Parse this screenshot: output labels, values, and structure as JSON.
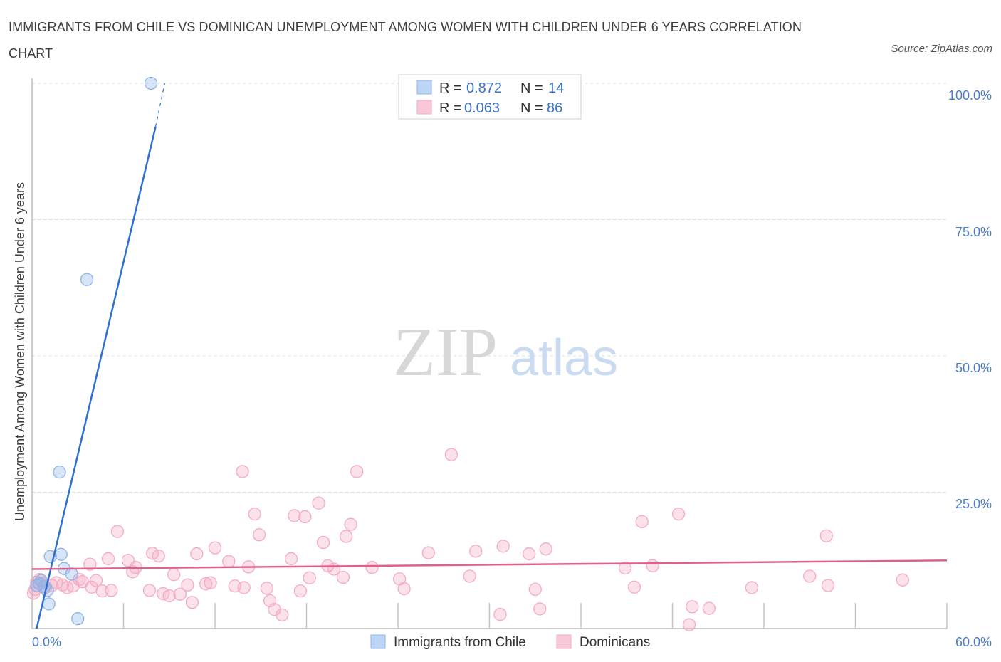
{
  "title": "IMMIGRANTS FROM CHILE VS DOMINICAN UNEMPLOYMENT AMONG WOMEN WITH CHILDREN UNDER 6 YEARS CORRELATION CHART",
  "source": "Source: ZipAtlas.com",
  "watermark": {
    "zip": "ZIP",
    "atlas": "atlas"
  },
  "legend": {
    "r_label": "R =",
    "n_label": "N =",
    "rows": [
      {
        "r": "0.872",
        "n": "14"
      },
      {
        "r": "0.063",
        "n": "86"
      }
    ]
  },
  "chart_data": {
    "type": "scatter",
    "title": "IMMIGRANTS FROM CHILE VS DOMINICAN UNEMPLOYMENT AMONG WOMEN WITH CHILDREN UNDER 6 YEARS CORRELATION CHART",
    "xlabel": "",
    "ylabel": "Unemployment Among Women with Children Under 6 years",
    "xlim": [
      0,
      60
    ],
    "ylim": [
      0,
      100
    ],
    "x_tick_labels": [
      "0.0%",
      "60.0%"
    ],
    "y_tick_labels": [
      "25.0%",
      "50.0%",
      "75.0%",
      "100.0%"
    ],
    "y_ticks": [
      25,
      50,
      75,
      100
    ],
    "grid": true,
    "series": [
      {
        "name": "Immigrants from Chile",
        "color": "#8fb4e8",
        "line_color": "#2f6fcf",
        "R": 0.872,
        "N": 14,
        "trend": {
          "x0": 0.3,
          "y0": 0.0,
          "x1": 8.1,
          "y1": 92.0,
          "dash_to_x": 8.7,
          "dash_to_y": 100
        },
        "points": [
          [
            7.8,
            100.0
          ],
          [
            3.6,
            64.0
          ],
          [
            1.8,
            28.7
          ],
          [
            1.2,
            13.2
          ],
          [
            1.9,
            13.6
          ],
          [
            2.1,
            11.0
          ],
          [
            2.6,
            10.0
          ],
          [
            0.6,
            8.8
          ],
          [
            0.5,
            8.2
          ],
          [
            0.8,
            7.7
          ],
          [
            0.3,
            7.9
          ],
          [
            1.0,
            7.0
          ],
          [
            1.1,
            4.5
          ],
          [
            3.0,
            1.8
          ]
        ]
      },
      {
        "name": "Dominicans",
        "color": "#f4aac2",
        "line_color": "#e0608c",
        "R": 0.063,
        "N": 86,
        "trend": {
          "x0": 0.0,
          "y0": 10.9,
          "x1": 60.0,
          "y1": 12.5
        },
        "points": [
          [
            0.1,
            6.5
          ],
          [
            0.2,
            7.2
          ],
          [
            0.3,
            8.5
          ],
          [
            0.5,
            9.0
          ],
          [
            0.7,
            8.3
          ],
          [
            0.9,
            7.6
          ],
          [
            1.3,
            7.9
          ],
          [
            1.6,
            8.4
          ],
          [
            2.0,
            8.0
          ],
          [
            2.3,
            7.5
          ],
          [
            2.7,
            7.8
          ],
          [
            3.1,
            9.0
          ],
          [
            3.3,
            8.6
          ],
          [
            3.9,
            7.6
          ],
          [
            4.2,
            8.8
          ],
          [
            3.8,
            11.8
          ],
          [
            4.6,
            6.9
          ],
          [
            5.2,
            7.0
          ],
          [
            5.6,
            17.8
          ],
          [
            5.0,
            12.8
          ],
          [
            6.3,
            12.5
          ],
          [
            6.8,
            11.2
          ],
          [
            6.6,
            10.4
          ],
          [
            7.7,
            7.0
          ],
          [
            7.9,
            13.8
          ],
          [
            8.3,
            13.3
          ],
          [
            8.6,
            6.4
          ],
          [
            9.0,
            6.0
          ],
          [
            9.3,
            9.9
          ],
          [
            9.7,
            6.3
          ],
          [
            10.2,
            8.0
          ],
          [
            10.5,
            4.8
          ],
          [
            10.8,
            13.7
          ],
          [
            11.4,
            8.2
          ],
          [
            11.7,
            8.4
          ],
          [
            12.0,
            14.8
          ],
          [
            12.9,
            12.3
          ],
          [
            13.3,
            7.8
          ],
          [
            13.9,
            7.5
          ],
          [
            13.8,
            28.8
          ],
          [
            14.2,
            11.3
          ],
          [
            14.6,
            21.0
          ],
          [
            14.9,
            17.2
          ],
          [
            15.4,
            7.4
          ],
          [
            15.6,
            5.1
          ],
          [
            15.9,
            3.5
          ],
          [
            16.4,
            2.5
          ],
          [
            17.0,
            12.8
          ],
          [
            17.2,
            20.7
          ],
          [
            17.9,
            20.5
          ],
          [
            17.6,
            6.9
          ],
          [
            18.2,
            9.3
          ],
          [
            18.8,
            23.0
          ],
          [
            19.1,
            15.8
          ],
          [
            19.4,
            11.5
          ],
          [
            19.8,
            10.9
          ],
          [
            20.6,
            16.9
          ],
          [
            20.4,
            9.4
          ],
          [
            20.9,
            19.1
          ],
          [
            21.3,
            28.8
          ],
          [
            22.3,
            11.2
          ],
          [
            24.1,
            9.1
          ],
          [
            24.4,
            7.3
          ],
          [
            26.0,
            13.9
          ],
          [
            27.5,
            31.9
          ],
          [
            28.7,
            9.6
          ],
          [
            29.1,
            14.2
          ],
          [
            30.7,
            2.6
          ],
          [
            30.9,
            15.1
          ],
          [
            32.6,
            13.7
          ],
          [
            33.0,
            7.2
          ],
          [
            33.3,
            3.6
          ],
          [
            33.7,
            14.6
          ],
          [
            38.9,
            11.1
          ],
          [
            40.0,
            19.6
          ],
          [
            40.7,
            11.5
          ],
          [
            42.4,
            21.0
          ],
          [
            43.3,
            4.0
          ],
          [
            43.1,
            0.7
          ],
          [
            44.4,
            3.7
          ],
          [
            47.2,
            7.5
          ],
          [
            51.0,
            9.6
          ],
          [
            52.1,
            17.0
          ],
          [
            52.2,
            7.9
          ],
          [
            57.1,
            8.9
          ],
          [
            39.5,
            7.6
          ]
        ]
      }
    ]
  }
}
